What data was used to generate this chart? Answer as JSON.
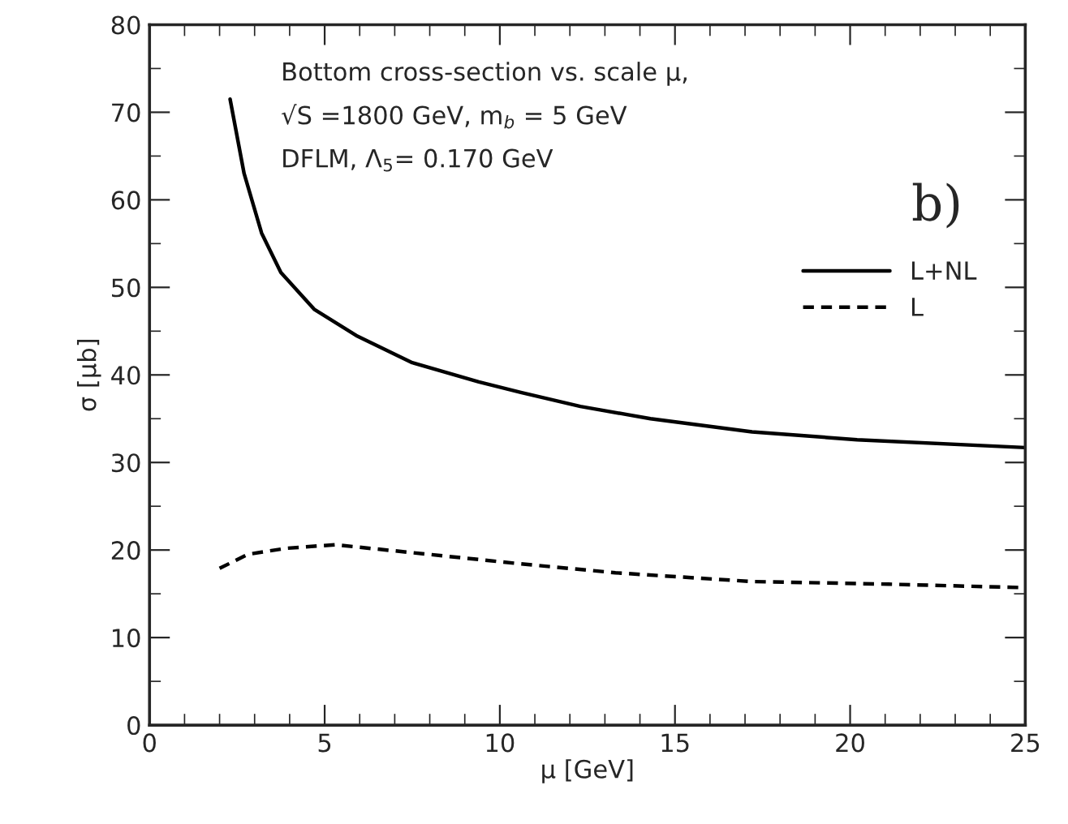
{
  "chart_data": {
    "type": "line",
    "xlabel": "μ [GeV]",
    "ylabel": "σ [μb]",
    "xlim": [
      0,
      25
    ],
    "xticks": [
      0,
      5,
      10,
      15,
      20,
      25
    ],
    "ylim": [
      0,
      80
    ],
    "yticks": [
      0,
      10,
      20,
      30,
      40,
      50,
      60,
      70,
      80
    ],
    "grid": false,
    "legend": "right",
    "marker": "none",
    "annotations": [
      "Bottom cross-section vs. scale μ,",
      "√S =1800 GeV, m$_{b}$ = 5 GeV",
      "DFLM, Λ$_{5}$= 0.170 GeV",
      "b)"
    ],
    "series": [
      {
        "name": "L+NL",
        "color": "#000000",
        "line_style": "solid",
        "x": [
          2.3,
          2.7,
          3.2,
          3.75,
          4.7,
          5.9,
          7.5,
          9.4,
          10.6,
          12.3,
          14.3,
          17.2,
          20.2,
          25
        ],
        "values": [
          71.5,
          63,
          56.2,
          51.7,
          47.5,
          44.5,
          41.4,
          39.2,
          38,
          36.4,
          35,
          33.5,
          32.6,
          31.7
        ]
      },
      {
        "name": "L",
        "color": "#000000",
        "line_style": "dashed",
        "x": [
          2.0,
          2.8,
          3.9,
          5.3,
          7.5,
          10.4,
          13.3,
          17.2,
          21.1,
          25
        ],
        "values": [
          17.9,
          19.5,
          20.2,
          20.6,
          19.7,
          18.5,
          17.4,
          16.4,
          16.1,
          15.7
        ]
      }
    ]
  }
}
